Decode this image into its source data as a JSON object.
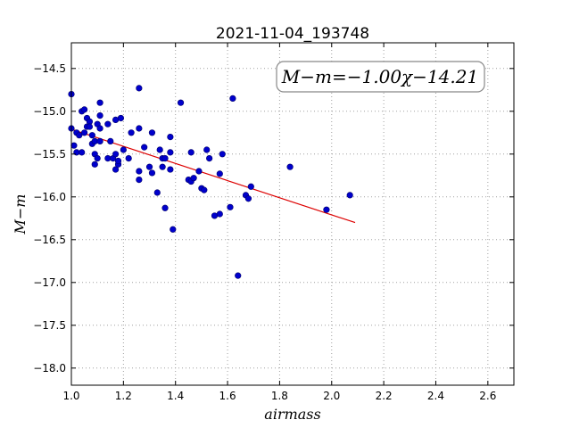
{
  "chart_data": {
    "type": "scatter",
    "title": "2021-11-04_193748",
    "xlabel": "airmass",
    "ylabel": "M−m",
    "annotation": "M−m=−1.00χ−14.21",
    "xlim": [
      1.0,
      2.7
    ],
    "ylim": [
      -18.2,
      -14.2
    ],
    "y_inverted": true,
    "grid": true,
    "x_ticks": [
      "1.0",
      "1.2",
      "1.4",
      "1.6",
      "1.8",
      "2.0",
      "2.2",
      "2.4",
      "2.6"
    ],
    "y_ticks": [
      "−14.5",
      "−15.0",
      "−15.5",
      "−16.0",
      "−16.5",
      "−17.0",
      "−17.5",
      "−18.0"
    ],
    "colors": {
      "points": "#0000cc",
      "fit": "#dd0000",
      "grid": "#b0b0b0"
    },
    "fit_line": {
      "slope": -1.0,
      "intercept": -14.21,
      "x_range": [
        1.0,
        2.09
      ]
    },
    "points": [
      [
        1.0,
        -14.8
      ],
      [
        1.0,
        -15.2
      ],
      [
        1.01,
        -15.4
      ],
      [
        1.02,
        -15.25
      ],
      [
        1.02,
        -15.48
      ],
      [
        1.03,
        -15.28
      ],
      [
        1.04,
        -15.0
      ],
      [
        1.04,
        -15.48
      ],
      [
        1.05,
        -14.98
      ],
      [
        1.05,
        -15.25
      ],
      [
        1.06,
        -15.08
      ],
      [
        1.06,
        -15.18
      ],
      [
        1.07,
        -15.12
      ],
      [
        1.07,
        -15.18
      ],
      [
        1.08,
        -15.28
      ],
      [
        1.08,
        -15.38
      ],
      [
        1.09,
        -15.35
      ],
      [
        1.09,
        -15.5
      ],
      [
        1.09,
        -15.62
      ],
      [
        1.1,
        -15.15
      ],
      [
        1.1,
        -15.55
      ],
      [
        1.11,
        -15.05
      ],
      [
        1.11,
        -15.35
      ],
      [
        1.11,
        -15.2
      ],
      [
        1.11,
        -14.9
      ],
      [
        1.14,
        -15.15
      ],
      [
        1.14,
        -15.55
      ],
      [
        1.15,
        -15.35
      ],
      [
        1.16,
        -15.55
      ],
      [
        1.17,
        -15.5
      ],
      [
        1.17,
        -15.68
      ],
      [
        1.17,
        -15.1
      ],
      [
        1.18,
        -15.62
      ],
      [
        1.18,
        -15.58
      ],
      [
        1.19,
        -15.08
      ],
      [
        1.2,
        -15.45
      ],
      [
        1.22,
        -15.55
      ],
      [
        1.23,
        -15.25
      ],
      [
        1.26,
        -14.73
      ],
      [
        1.26,
        -15.2
      ],
      [
        1.26,
        -15.7
      ],
      [
        1.26,
        -15.8
      ],
      [
        1.28,
        -15.42
      ],
      [
        1.3,
        -15.65
      ],
      [
        1.31,
        -15.25
      ],
      [
        1.31,
        -15.72
      ],
      [
        1.33,
        -15.95
      ],
      [
        1.34,
        -15.45
      ],
      [
        1.35,
        -15.55
      ],
      [
        1.35,
        -15.65
      ],
      [
        1.36,
        -16.13
      ],
      [
        1.36,
        -15.55
      ],
      [
        1.38,
        -15.3
      ],
      [
        1.38,
        -15.48
      ],
      [
        1.38,
        -15.68
      ],
      [
        1.39,
        -16.38
      ],
      [
        1.42,
        -14.9
      ],
      [
        1.45,
        -15.8
      ],
      [
        1.46,
        -15.48
      ],
      [
        1.46,
        -15.82
      ],
      [
        1.47,
        -15.78
      ],
      [
        1.49,
        -15.7
      ],
      [
        1.5,
        -15.9
      ],
      [
        1.51,
        -15.92
      ],
      [
        1.52,
        -15.45
      ],
      [
        1.53,
        -15.55
      ],
      [
        1.55,
        -16.22
      ],
      [
        1.57,
        -15.73
      ],
      [
        1.57,
        -16.2
      ],
      [
        1.58,
        -15.5
      ],
      [
        1.61,
        -16.12
      ],
      [
        1.62,
        -14.85
      ],
      [
        1.64,
        -16.92
      ],
      [
        1.67,
        -15.98
      ],
      [
        1.68,
        -16.02
      ],
      [
        1.69,
        -15.88
      ],
      [
        1.84,
        -15.65
      ],
      [
        1.98,
        -16.15
      ],
      [
        2.07,
        -15.98
      ]
    ]
  }
}
